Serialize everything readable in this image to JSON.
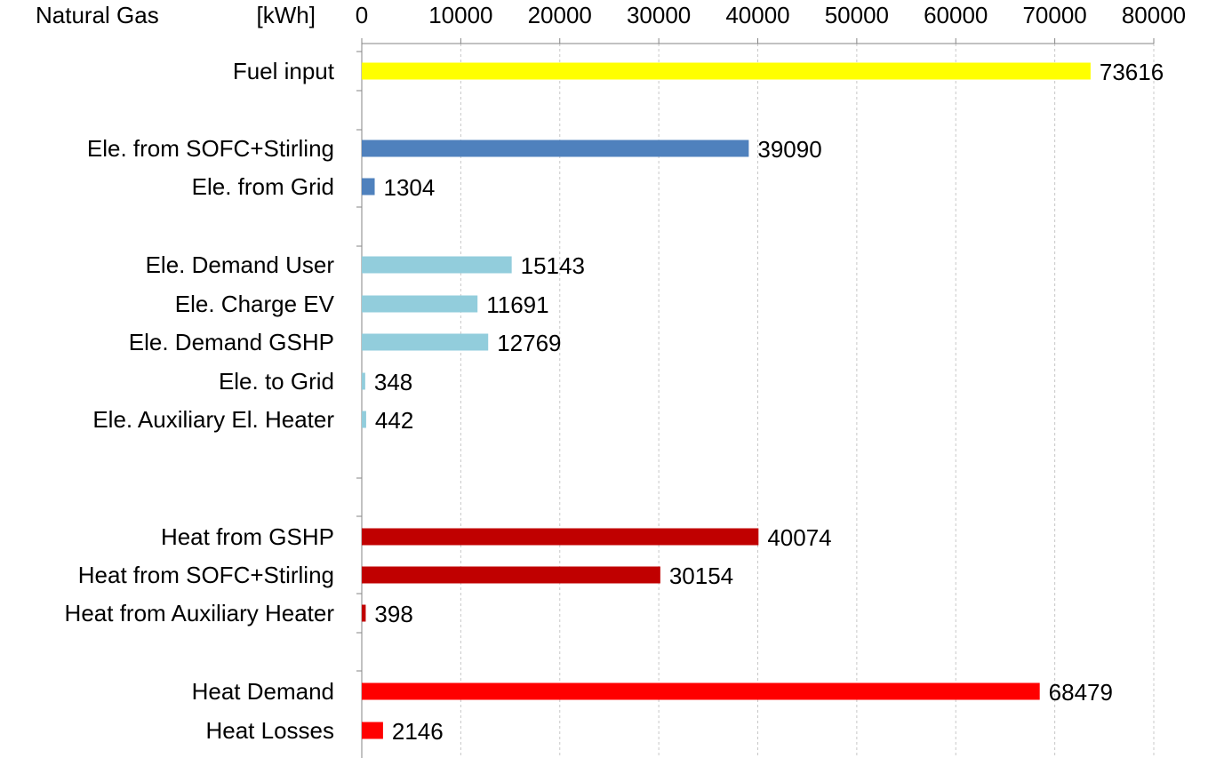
{
  "header": {
    "title": "Natural Gas",
    "unit": "[kWh]"
  },
  "chart_data": {
    "type": "bar",
    "orientation": "horizontal",
    "title": "Natural Gas",
    "unit": "[kWh]",
    "xlim": [
      0,
      80000
    ],
    "x_ticks": [
      0,
      10000,
      20000,
      30000,
      40000,
      50000,
      60000,
      70000,
      80000
    ],
    "x_axis_position": "top",
    "grid": "vertical dashed",
    "data_labels": true,
    "categories": [
      {
        "label": "Fuel input",
        "value": 73616,
        "color": "#ffff00"
      },
      {
        "label": "Ele. from SOFC+Stirling",
        "value": 39090,
        "color": "#4f81bd"
      },
      {
        "label": "Ele. from Grid",
        "value": 1304,
        "color": "#4f81bd"
      },
      {
        "label": "Ele. Demand User",
        "value": 15143,
        "color": "#92cddc"
      },
      {
        "label": "Ele. Charge EV",
        "value": 11691,
        "color": "#92cddc"
      },
      {
        "label": "Ele. Demand GSHP",
        "value": 12769,
        "color": "#92cddc"
      },
      {
        "label": "Ele. to Grid",
        "value": 348,
        "color": "#92cddc"
      },
      {
        "label": "Ele. Auxiliary El. Heater",
        "value": 442,
        "color": "#92cddc"
      },
      {
        "label": "Heat from GSHP",
        "value": 40074,
        "color": "#c00000"
      },
      {
        "label": "Heat from SOFC+Stirling",
        "value": 30154,
        "color": "#c00000"
      },
      {
        "label": "Heat from Auxiliary Heater",
        "value": 398,
        "color": "#c00000"
      },
      {
        "label": "Heat Demand",
        "value": 68479,
        "color": "#ff0000"
      },
      {
        "label": "Heat Losses",
        "value": 2146,
        "color": "#ff0000"
      }
    ]
  }
}
